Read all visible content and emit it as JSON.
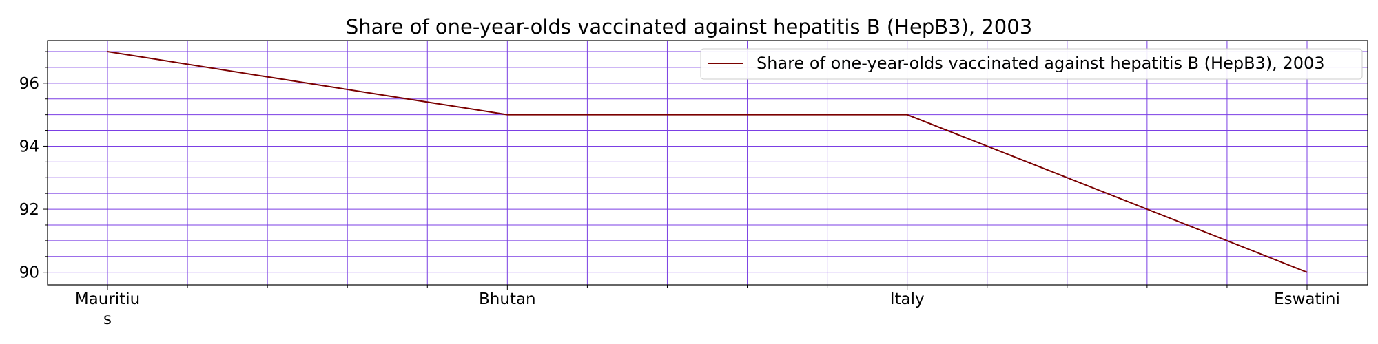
{
  "chart_data": {
    "type": "line",
    "title": "Share of one-year-olds vaccinated against hepatitis B (HepB3), 2003",
    "categories": [
      "Mauritius",
      "Bhutan",
      "Italy",
      "Eswatini"
    ],
    "category_tick_lines": [
      [
        "Mauritiu",
        "s"
      ],
      [
        "Bhutan"
      ],
      [
        "Italy"
      ],
      [
        "Eswatini"
      ]
    ],
    "series": [
      {
        "name": "Share of one-year-olds vaccinated against hepatitis B (HepB3), 2003",
        "values": [
          97,
          95,
          95,
          90
        ],
        "color": "#7a0000"
      }
    ],
    "xlabel": "",
    "ylabel": "",
    "ylim": [
      89.6,
      97.35
    ],
    "yticks": [
      90,
      92,
      94,
      96
    ],
    "y_minor_step": 0.5,
    "x_minor_divisions": 5,
    "grid": true,
    "grid_color": "#7b3fe4",
    "legend_position": "top-right"
  }
}
